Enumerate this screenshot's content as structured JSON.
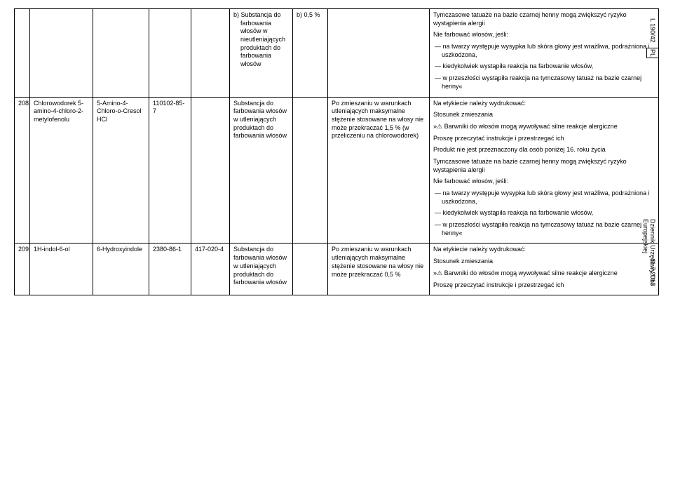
{
  "side": {
    "top": "L 190/42",
    "lang": "PL",
    "mid": "Dziennik Urzędowy Unii Europejskiej",
    "bot": "11.7.2013"
  },
  "rows": [
    {
      "num": "",
      "name": "",
      "chem": "",
      "cas": "",
      "ec": "",
      "spec": "b) Substancja do farbowania włosów w nieutleniających produktach do farbowania włosów",
      "conc": "b) 0,5 %",
      "cond": "",
      "warn": [
        "Tymczasowe tatuaże na bazie czarnej henny mogą zwiększyć ryzyko wystąpienia alergii",
        "Nie farbować włosów, jeśli:",
        "— na twarzy występuje wysypka lub skóra głowy jest wrażliwa, podrażniona i uszkodzona,",
        "— kiedykolwiek wystąpiła reakcja na farbowanie włosów,",
        "— w przeszłości wystąpiła reakcja na tymczasowy tatuaż na bazie czarnej henny«"
      ]
    },
    {
      "num": "208",
      "name": "Chlorowodorek 5-amino-4-chloro-2-metylofenolu",
      "chem": "5-Amino-4-Chloro-o-Cresol HCl",
      "cas": "110102-85-7",
      "ec": "",
      "spec": "Substancja do farbowania włosów w utleniających produktach do farbowania włosów",
      "conc": "",
      "cond": "Po zmieszaniu w warunkach utleniających maksymalne stężenie stosowane na włosy nie może przekraczać 1,5 % (w przeliczeniu na chlorowodorek)",
      "warn": [
        "Na etykiecie należy wydrukować:",
        "Stosunek zmieszania",
        "»⚠ Barwniki do włosów mogą wywoływać silne reakcje alergiczne",
        "Proszę przeczytać instrukcje i przestrzegać ich",
        "Produkt nie jest przeznaczony dla osób poniżej 16. roku życia",
        "Tymczasowe tatuaże na bazie czarnej henny mogą zwiększyć ryzyko wystąpienia alergii",
        "Nie farbować włosów, jeśli:",
        "— na twarzy występuje wysypka lub skóra głowy jest wrażliwa, podrażniona i uszkodzona,",
        "— kiedykolwiek wystąpiła reakcja na farbowanie włosów,",
        "— w przeszłości wystąpiła reakcja na tymczasowy tatuaż na bazie czarnej henny«"
      ]
    },
    {
      "num": "209",
      "name": "1H-indol-6-ol",
      "chem": "6-Hydroxyindole",
      "cas": "2380-86-1",
      "ec": "417-020-4",
      "spec": "Substancja do farbowania włosów w utleniających produktach do farbowania włosów",
      "conc": "",
      "cond": "Po zmieszaniu w warunkach utleniających maksymalne stężenie stosowane na włosy nie może przekraczać 0,5 %",
      "warn": [
        "Na etykiecie należy wydrukować:",
        "Stosunek zmieszania",
        "»⚠ Barwniki do włosów mogą wywoływać silne reakcje alergiczne",
        "Proszę przeczytać instrukcje i przestrzegać ich"
      ]
    }
  ]
}
